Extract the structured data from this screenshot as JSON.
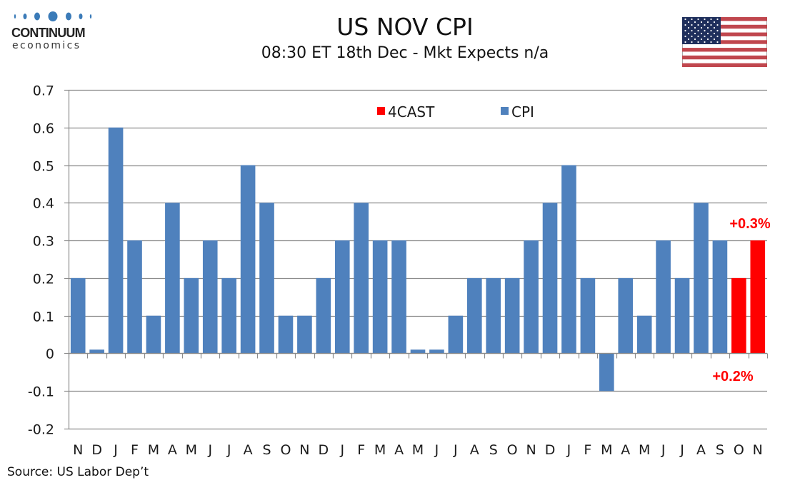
{
  "header": {
    "logo_title": "CONTINUUM",
    "logo_subtitle": "economics",
    "title": "US NOV CPI",
    "subtitle": "08:30 ET 18th Dec - Mkt Expects n/a",
    "flag_icon": "us-flag-icon"
  },
  "footer": {
    "source": "Source: US Labor Dep’t"
  },
  "colors": {
    "cpi": "#4f81bd",
    "forecast": "#ff0000",
    "grid": "#8c8c8c",
    "logo_blue": "#3b7bb8"
  },
  "chart_data": {
    "type": "bar",
    "title": "US NOV CPI",
    "subtitle": "08:30 ET 18th Dec - Mkt Expects n/a",
    "xlabel": "",
    "ylabel": "",
    "ylim": [
      -0.2,
      0.7
    ],
    "yticks": [
      0.7,
      0.6,
      0.5,
      0.4,
      0.3,
      0.2,
      0.1,
      0,
      -0.1,
      -0.2
    ],
    "ytick_labels": [
      "0.7",
      "0.6",
      "0.5",
      "0.4",
      "0.3",
      "0.2",
      "0.1",
      "0",
      "-0.1",
      "-0.2"
    ],
    "grid": true,
    "legend_position": "top-center",
    "categories": [
      "N",
      "D",
      "J",
      "F",
      "M",
      "A",
      "M",
      "J",
      "J",
      "A",
      "S",
      "O",
      "N",
      "D",
      "J",
      "F",
      "M",
      "A",
      "M",
      "J",
      "J",
      "A",
      "S",
      "O",
      "N",
      "D",
      "J",
      "F",
      "M",
      "A",
      "M",
      "J",
      "J",
      "A",
      "S",
      "O",
      "N"
    ],
    "series": [
      {
        "name": "4CAST",
        "color": "#ff0000",
        "values": [
          null,
          null,
          null,
          null,
          null,
          null,
          null,
          null,
          null,
          null,
          null,
          null,
          null,
          null,
          null,
          null,
          null,
          null,
          null,
          null,
          null,
          null,
          null,
          null,
          null,
          null,
          null,
          null,
          null,
          null,
          null,
          null,
          null,
          null,
          null,
          0.2,
          0.3
        ]
      },
      {
        "name": "CPI",
        "color": "#4f81bd",
        "values": [
          0.2,
          0.01,
          0.6,
          0.3,
          0.1,
          0.4,
          0.2,
          0.3,
          0.2,
          0.5,
          0.4,
          0.1,
          0.1,
          0.2,
          0.3,
          0.4,
          0.3,
          0.3,
          0.01,
          0.01,
          0.1,
          0.2,
          0.2,
          0.2,
          0.3,
          0.4,
          0.5,
          0.2,
          -0.1,
          0.2,
          0.1,
          0.3,
          0.2,
          0.4,
          0.3,
          null,
          null
        ]
      }
    ],
    "annotations": [
      {
        "text": "+0.3%",
        "category_index": 36,
        "color": "#ff0000"
      },
      {
        "text": "+0.2%",
        "category_index": 35,
        "color": "#ff0000"
      }
    ]
  }
}
